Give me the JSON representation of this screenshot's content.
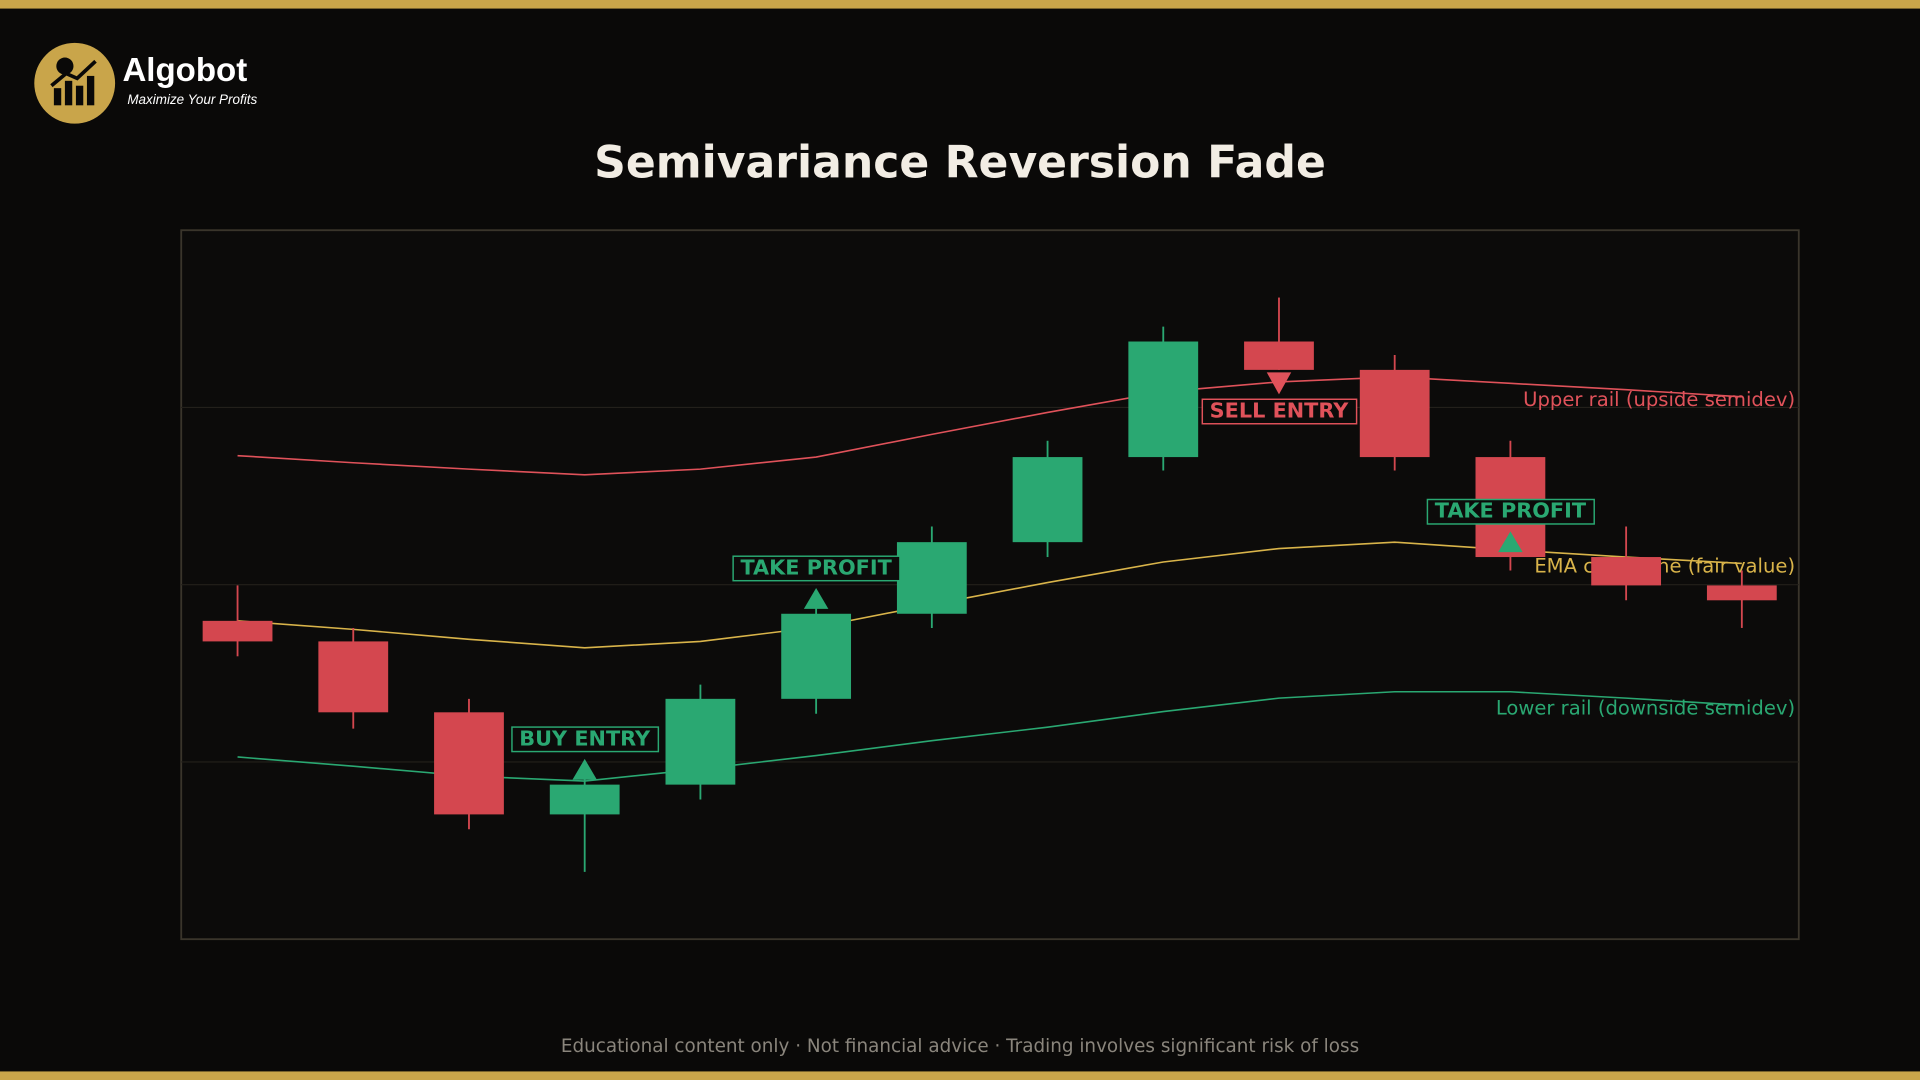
{
  "brand": {
    "name": "Algobot",
    "tagline": "Maximize Your Profits"
  },
  "footer": "Educational content only  ·  Not financial advice  ·  Trading involves significant risk of loss",
  "chart_data": {
    "type": "candlestick",
    "title": "Semivariance Reversion Fade",
    "ylim": [
      0,
      100
    ],
    "yticks": [
      25,
      50,
      75
    ],
    "grid": true,
    "up_color": "#2aa872",
    "down_color": "#d4474f",
    "open": [
      44.9,
      42.0,
      32.0,
      17.6,
      21.8,
      33.9,
      45.9,
      56.0,
      68.0,
      84.3,
      80.3,
      68.0,
      53.9,
      49.9
    ],
    "high": [
      49.9,
      43.9,
      33.9,
      24.5,
      35.9,
      47.8,
      58.2,
      70.3,
      86.4,
      90.5,
      82.4,
      70.3,
      58.2,
      52.0
    ],
    "low": [
      39.9,
      29.7,
      15.5,
      9.5,
      19.7,
      31.8,
      43.9,
      53.9,
      66.1,
      80.3,
      66.1,
      52.0,
      47.8,
      43.9
    ],
    "close": [
      42.0,
      32.0,
      17.6,
      21.8,
      33.9,
      45.9,
      56.0,
      68.0,
      84.3,
      80.3,
      68.0,
      53.9,
      49.9,
      47.8
    ],
    "series": [
      {
        "name": "Upper rail (upside semidev)",
        "color": "#e0525a",
        "values": [
          68.2,
          67.2,
          66.3,
          65.5,
          66.3,
          68.0,
          71.2,
          74.3,
          77.2,
          78.6,
          79.3,
          78.4,
          77.5,
          76.5
        ]
      },
      {
        "name": "EMA centerline (fair value)",
        "color": "#d9b44a",
        "values": [
          44.9,
          43.7,
          42.3,
          41.1,
          42.0,
          44.0,
          47.2,
          50.3,
          53.2,
          55.1,
          56.0,
          54.9,
          53.9,
          53.0
        ]
      },
      {
        "name": "Lower rail (downside semidev)",
        "color": "#2aa872",
        "values": [
          25.7,
          24.4,
          23.0,
          22.3,
          24.0,
          25.9,
          28.0,
          29.9,
          32.1,
          34.0,
          34.9,
          34.9,
          34.0,
          33.0
        ]
      }
    ],
    "annotations": [
      {
        "index": 3,
        "text": "BUY ENTRY",
        "direction": "up",
        "color": "#2aa872"
      },
      {
        "index": 5,
        "text": "TAKE PROFIT",
        "direction": "up",
        "color": "#2aa872"
      },
      {
        "index": 9,
        "text": "SELL ENTRY",
        "direction": "down",
        "color": "#e0525a"
      },
      {
        "index": 11,
        "text": "TAKE PROFIT",
        "direction": "up",
        "color": "#2aa872"
      }
    ]
  }
}
